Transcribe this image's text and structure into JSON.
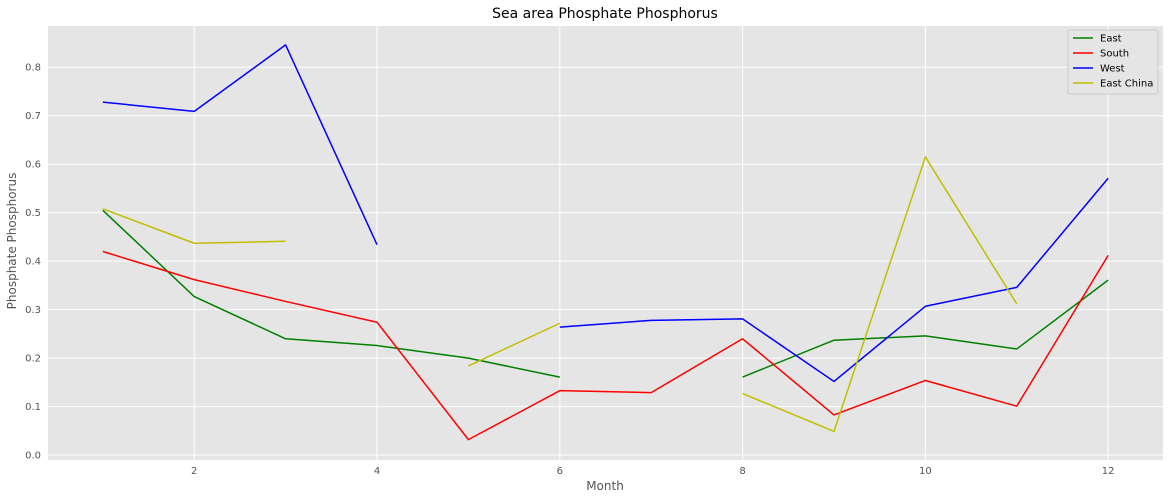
{
  "chart_data": {
    "type": "line",
    "title": "Sea area Phosphate Phosphorus",
    "xlabel": "Month",
    "ylabel": "Phosphate Phosphorus",
    "xlim": [
      0.4,
      12.6
    ],
    "ylim": [
      -0.01,
      0.885
    ],
    "xticks": [
      2,
      4,
      6,
      8,
      10,
      12
    ],
    "yticks": [
      0.0,
      0.1,
      0.2,
      0.3,
      0.4,
      0.5,
      0.6,
      0.7,
      0.8
    ],
    "grid": true,
    "legend_position": "top-right",
    "background": "#e5e5e5",
    "x": [
      1,
      2,
      3,
      4,
      5,
      6,
      7,
      8,
      9,
      10,
      11,
      12
    ],
    "series": [
      {
        "name": "East",
        "color": "#008000",
        "values": [
          0.505,
          0.327,
          0.24,
          0.226,
          0.2,
          0.161,
          null,
          0.161,
          0.237,
          0.246,
          0.219,
          0.361
        ]
      },
      {
        "name": "South",
        "color": "#ff0000",
        "values": [
          0.42,
          0.362,
          0.317,
          0.274,
          0.032,
          0.133,
          0.129,
          0.24,
          0.083,
          0.154,
          0.101,
          0.412
        ]
      },
      {
        "name": "West",
        "color": "#0000ff",
        "values": [
          0.728,
          0.709,
          0.846,
          0.434,
          null,
          0.264,
          0.278,
          0.281,
          0.152,
          0.307,
          0.346,
          0.571
        ]
      },
      {
        "name": "East China",
        "color": "#bfbf00",
        "values": [
          0.508,
          0.437,
          0.441,
          null,
          0.184,
          0.272,
          null,
          0.127,
          0.049,
          0.615,
          0.312,
          null
        ]
      }
    ]
  }
}
